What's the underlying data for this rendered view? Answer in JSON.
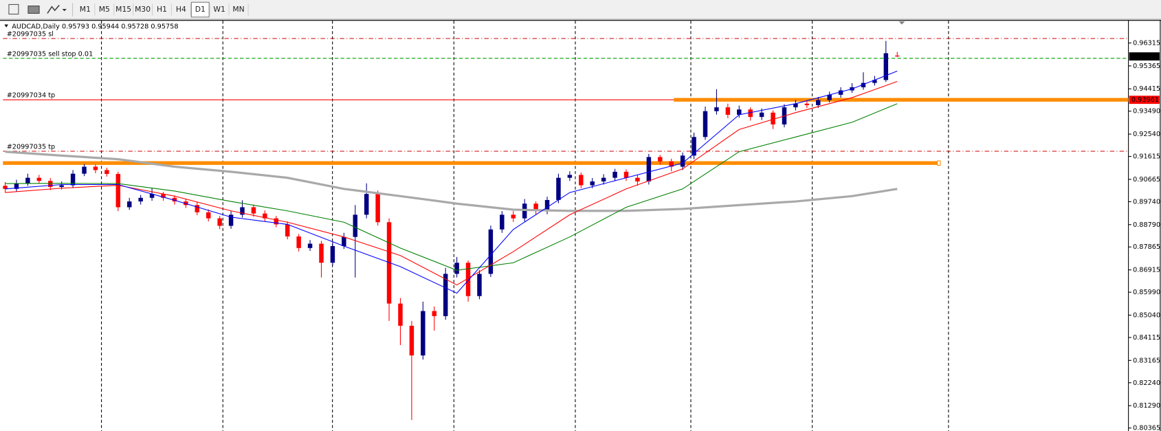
{
  "toolbar": {
    "timeframes": [
      "M1",
      "M5",
      "M15",
      "M30",
      "H1",
      "H4",
      "D1",
      "W1",
      "MN"
    ],
    "active_index": 6
  },
  "chart_data": {
    "type": "candlestick",
    "symbol": "AUDCAD,Daily",
    "open": [
      0.904,
      0.9027,
      0.905,
      0.9073,
      0.906,
      0.9035,
      0.9042,
      0.909,
      0.9119,
      0.9105,
      0.9089,
      0.8951,
      0.8975,
      0.899,
      0.9006,
      0.899,
      0.8975,
      0.896,
      0.893,
      0.8905,
      0.8874,
      0.892,
      0.8951,
      0.8925,
      0.8905,
      0.888,
      0.883,
      0.8782,
      0.88,
      0.8721,
      0.879,
      0.8828,
      0.892,
      0.9006,
      0.8889,
      0.8552,
      0.846,
      0.8337,
      0.8521,
      0.85,
      0.8675,
      0.8721,
      0.8583,
      0.8675,
      0.8859,
      0.892,
      0.8905,
      0.8966,
      0.8936,
      0.8981,
      0.9073,
      0.9085,
      0.9042,
      0.9058,
      0.9073,
      0.9098,
      0.9073,
      0.9058,
      0.9159,
      0.9141,
      0.9119,
      0.9165,
      0.9242,
      0.9349,
      0.9365,
      0.9334,
      0.9356,
      0.9325,
      0.9343,
      0.9294,
      0.9365,
      0.938,
      0.9374,
      0.9395,
      0.9417,
      0.9435,
      0.9448,
      0.9466,
      0.9478,
      0.95793
    ],
    "high": [
      0.9055,
      0.9065,
      0.909,
      0.9085,
      0.9072,
      0.9058,
      0.9105,
      0.913,
      0.9128,
      0.9115,
      0.9098,
      0.899,
      0.9002,
      0.903,
      0.9015,
      0.9,
      0.8985,
      0.8972,
      0.8942,
      0.8915,
      0.8935,
      0.898,
      0.8962,
      0.8938,
      0.8915,
      0.8892,
      0.884,
      0.8815,
      0.8812,
      0.881,
      0.8845,
      0.896,
      0.905,
      0.902,
      0.8905,
      0.8575,
      0.848,
      0.856,
      0.854,
      0.87,
      0.8745,
      0.873,
      0.869,
      0.8875,
      0.8935,
      0.8935,
      0.8985,
      0.8975,
      0.8995,
      0.909,
      0.91,
      0.9095,
      0.9072,
      0.9088,
      0.911,
      0.9108,
      0.9085,
      0.9172,
      0.9168,
      0.9152,
      0.9178,
      0.926,
      0.9368,
      0.944,
      0.938,
      0.9372,
      0.9365,
      0.936,
      0.9352,
      0.9378,
      0.9395,
      0.939,
      0.9408,
      0.943,
      0.9448,
      0.9465,
      0.951,
      0.9495,
      0.964,
      0.95944
    ],
    "low": [
      0.9012,
      0.9015,
      0.904,
      0.905,
      0.9022,
      0.9025,
      0.903,
      0.908,
      0.9092,
      0.9078,
      0.8935,
      0.894,
      0.8962,
      0.8978,
      0.8978,
      0.8962,
      0.8948,
      0.8918,
      0.8892,
      0.886,
      0.8862,
      0.8908,
      0.8912,
      0.8892,
      0.8868,
      0.8818,
      0.8768,
      0.877,
      0.866,
      0.871,
      0.8778,
      0.866,
      0.8905,
      0.8875,
      0.848,
      0.838,
      0.807,
      0.832,
      0.844,
      0.8485,
      0.866,
      0.856,
      0.857,
      0.8662,
      0.8845,
      0.889,
      0.8892,
      0.8922,
      0.8922,
      0.8968,
      0.906,
      0.903,
      0.903,
      0.9045,
      0.9062,
      0.906,
      0.904,
      0.9045,
      0.9128,
      0.91,
      0.9105,
      0.915,
      0.923,
      0.9335,
      0.932,
      0.9322,
      0.931,
      0.9312,
      0.9275,
      0.9282,
      0.9352,
      0.9362,
      0.9362,
      0.9385,
      0.9405,
      0.9425,
      0.9438,
      0.9455,
      0.947,
      0.95728
    ],
    "close": [
      0.9027,
      0.905,
      0.9073,
      0.906,
      0.9035,
      0.9042,
      0.909,
      0.9119,
      0.9105,
      0.9089,
      0.8951,
      0.8975,
      0.899,
      0.9006,
      0.899,
      0.8975,
      0.896,
      0.893,
      0.8905,
      0.8874,
      0.892,
      0.8951,
      0.8925,
      0.8905,
      0.888,
      0.883,
      0.8782,
      0.88,
      0.8721,
      0.879,
      0.8828,
      0.892,
      0.9006,
      0.8889,
      0.8552,
      0.846,
      0.8337,
      0.8521,
      0.85,
      0.8675,
      0.8721,
      0.8583,
      0.8675,
      0.8859,
      0.892,
      0.8905,
      0.8966,
      0.8936,
      0.8981,
      0.9073,
      0.9085,
      0.9042,
      0.9058,
      0.9073,
      0.9098,
      0.9073,
      0.9058,
      0.9159,
      0.9141,
      0.9119,
      0.9165,
      0.9242,
      0.9349,
      0.9365,
      0.9334,
      0.9356,
      0.9325,
      0.9343,
      0.9294,
      0.9365,
      0.938,
      0.9374,
      0.9395,
      0.9417,
      0.9435,
      0.9448,
      0.9466,
      0.9478,
      0.9589,
      0.95758
    ],
    "up_color": "#000080",
    "down_color": "#ff0000",
    "ylim": [
      0.80242,
      0.97235
    ],
    "yticks": [
      0.96315,
      0.95365,
      0.94415,
      {
        "value": 0.9349,
        "label": "0.93490"
      },
      {
        "value": 0.9254,
        "label": "0.92540"
      },
      0.91615,
      0.90665,
      {
        "value": 0.8974,
        "label": "0.89740"
      },
      {
        "value": 0.8879,
        "label": "0.88790"
      },
      0.87865,
      0.86915,
      {
        "value": 0.8599,
        "label": "0.85990"
      },
      {
        "value": 0.8504,
        "label": "0.85040"
      },
      0.84115,
      0.83165,
      {
        "value": 0.8224,
        "label": "0.82240"
      },
      {
        "value": 0.8129,
        "label": "0.81290"
      },
      0.80365
    ],
    "lines": [
      {
        "color": "#a9a9a9",
        "x": [
          0,
          5,
          10,
          15,
          20,
          25,
          30,
          35,
          40,
          45,
          50,
          55,
          60,
          65,
          70,
          75,
          79
        ],
        "values": [
          0.9181,
          0.9165,
          0.915,
          0.9119,
          0.9098,
          0.9073,
          0.9027,
          0.8997,
          0.8966,
          0.8941,
          0.8936,
          0.8936,
          0.8944,
          0.896,
          0.8975,
          0.8997,
          0.9027
        ]
      },
      {
        "color": "#008000",
        "x": [
          0,
          5,
          10,
          15,
          20,
          25,
          30,
          35,
          40,
          45,
          50,
          55,
          60,
          65,
          70,
          75,
          79
        ],
        "values": [
          0.9049,
          0.905,
          0.9049,
          0.9018,
          0.8975,
          0.8936,
          0.8889,
          0.8782,
          0.869,
          0.8721,
          0.8828,
          0.8951,
          0.9027,
          0.9181,
          0.9242,
          0.9303,
          0.938
        ]
      },
      {
        "color": "#ff0000",
        "x": [
          0,
          5,
          10,
          15,
          20,
          25,
          30,
          35,
          40,
          45,
          50,
          55,
          60,
          65,
          70,
          75,
          79
        ],
        "values": [
          0.9012,
          0.903,
          0.9042,
          0.8997,
          0.8936,
          0.8889,
          0.8828,
          0.8751,
          0.8629,
          0.8767,
          0.892,
          0.9027,
          0.911,
          0.9273,
          0.9343,
          0.9405,
          0.9472
        ]
      },
      {
        "color": "#0000ff",
        "x": [
          0,
          5,
          10,
          15,
          20,
          25,
          30,
          35,
          40,
          45,
          50,
          55,
          60,
          65,
          70,
          75,
          79
        ],
        "values": [
          0.9027,
          0.9045,
          0.9045,
          0.898,
          0.891,
          0.888,
          0.879,
          0.8705,
          0.8595,
          0.8859,
          0.9012,
          0.9073,
          0.9134,
          0.9334,
          0.938,
          0.9441,
          0.9515
        ]
      }
    ],
    "orders": [
      {
        "label": "#20997035 sl",
        "value": 0.965,
        "color": "#cc0000",
        "style": "dashdot"
      },
      {
        "label": "#20997035 sell stop 0.01",
        "value": 0.9568,
        "color": "#00a000",
        "style": "dash"
      },
      {
        "label": "#20997034 tp",
        "value": 0.93961,
        "color": "#ff0000",
        "style": "solid"
      },
      {
        "label": "#20997035 tp",
        "value": 0.9183,
        "color": "#cc0000",
        "style": "dashdot"
      }
    ],
    "levels": [
      {
        "value": 0.93961,
        "color": "#ff8c00"
      },
      {
        "value": 0.9134,
        "color": "#ff8c00"
      }
    ]
  }
}
